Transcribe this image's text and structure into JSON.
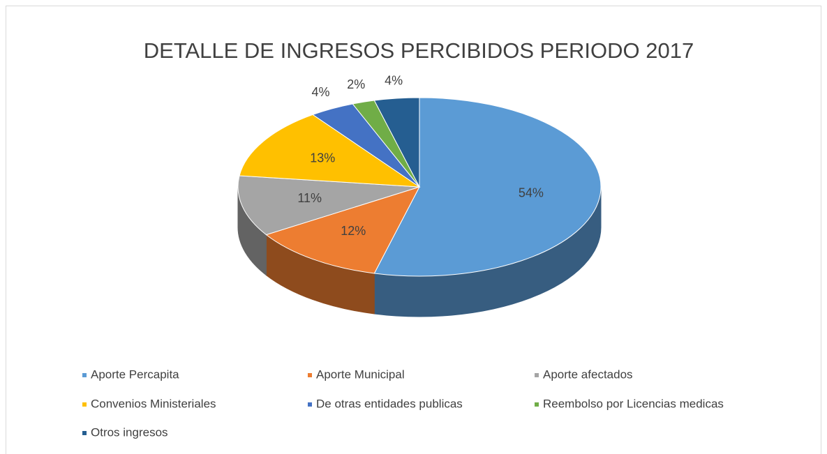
{
  "chart_data": {
    "type": "pie3d",
    "title": "DETALLE DE INGRESOS PERCIBIDOS PERIODO 2017",
    "categories": [
      "Aporte Percapita",
      "Aporte Municipal",
      "Aporte afectados",
      "Convenios Ministeriales",
      "De otras entidades publicas",
      "Reembolso por Licencias medicas",
      "Otros ingresos"
    ],
    "values": [
      54,
      12,
      11,
      13,
      4,
      2,
      4
    ],
    "value_labels": [
      "54%",
      "12%",
      "11%",
      "13%",
      "4%",
      "2%",
      "4%"
    ],
    "colors": [
      "#5b9bd5",
      "#ed7d31",
      "#a5a5a5",
      "#ffc000",
      "#4472c4",
      "#70ad47",
      "#255e91"
    ],
    "legend": "bottom"
  }
}
